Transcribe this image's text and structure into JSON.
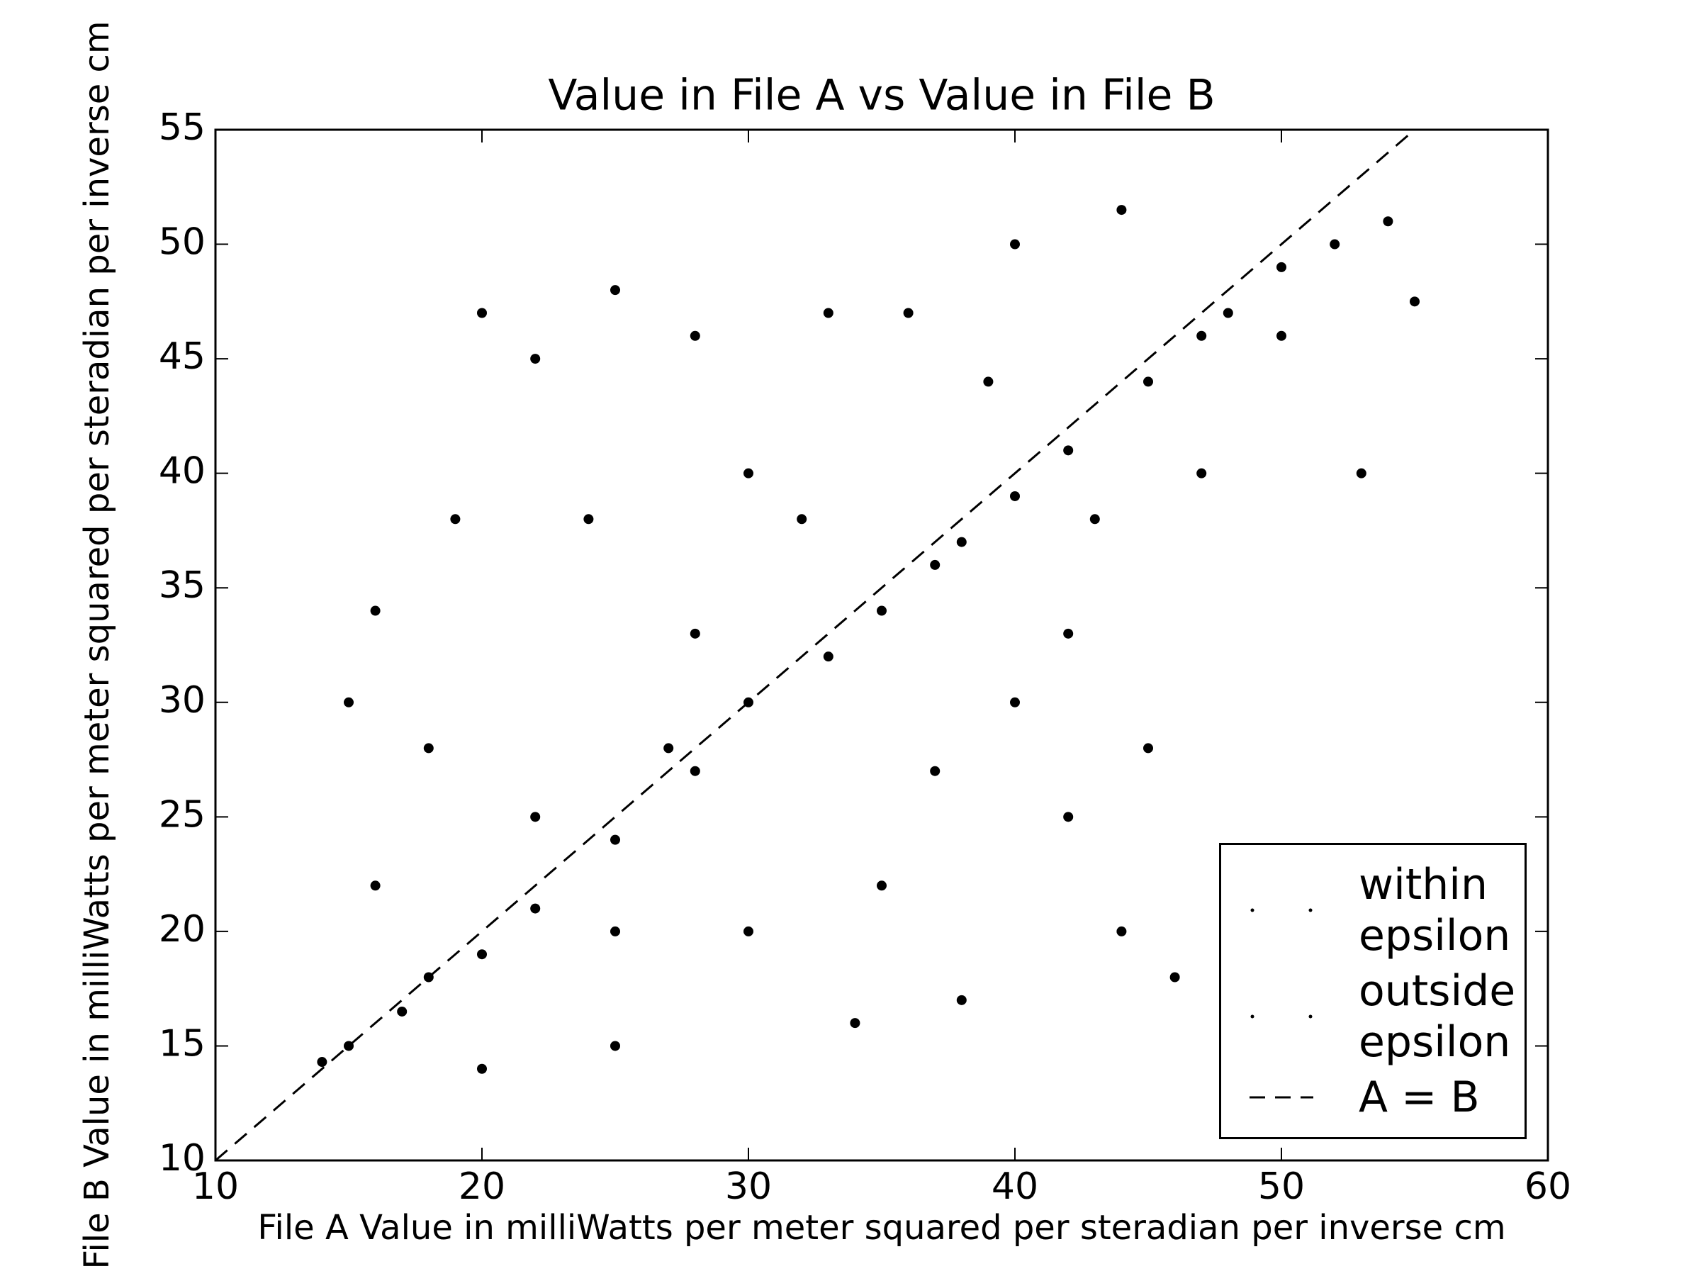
{
  "chart_data": {
    "type": "scatter",
    "title": "Value in File A vs Value in File B",
    "x_label": "File A Value in milliWatts per meter squared per steradian per inverse cm",
    "y_label": "File B Value in milliWatts per meter squared per steradian per inverse cm",
    "xlim": [
      10,
      60
    ],
    "ylim": [
      10,
      55
    ],
    "xticks": [
      10,
      20,
      30,
      40,
      50,
      60
    ],
    "yticks": [
      10,
      15,
      20,
      25,
      30,
      35,
      40,
      45,
      50,
      55
    ],
    "legend": "lower right",
    "series": [
      {
        "name": "within epsilon",
        "color": "#000000",
        "x": [
          15,
          17,
          20,
          22,
          25,
          28,
          30,
          33,
          35,
          38,
          40,
          42,
          45,
          47,
          50,
          52,
          54,
          27,
          37,
          48
        ],
        "values": [
          15,
          16.5,
          19,
          21,
          24,
          27,
          30,
          32,
          34,
          37,
          39,
          41,
          44,
          46,
          49,
          50,
          51,
          28,
          36,
          47
        ]
      },
      {
        "name": "outside epsilon",
        "color": "#000000",
        "x": [
          14,
          15,
          16,
          18,
          20,
          22,
          25,
          28,
          30,
          33,
          36,
          40,
          44,
          42,
          38,
          34,
          25,
          20,
          40,
          35,
          30,
          44,
          46,
          45,
          53,
          50,
          55,
          43,
          37,
          19,
          22,
          25,
          28,
          32,
          24,
          18,
          16,
          42,
          47,
          39
        ],
        "values": [
          14.3,
          30,
          34,
          28,
          47,
          45,
          48,
          46,
          40,
          47,
          47,
          50,
          51.5,
          25,
          17,
          16,
          15,
          14,
          30,
          22,
          20,
          20,
          18,
          28,
          40,
          46,
          47.5,
          38,
          27,
          38,
          25,
          20,
          33,
          38,
          38,
          18,
          22,
          33,
          40,
          44
        ]
      },
      {
        "name": "A = B",
        "type": "line",
        "dashed": true,
        "color": "#000000",
        "x": [
          10,
          60
        ],
        "values": [
          10,
          60
        ]
      }
    ]
  }
}
